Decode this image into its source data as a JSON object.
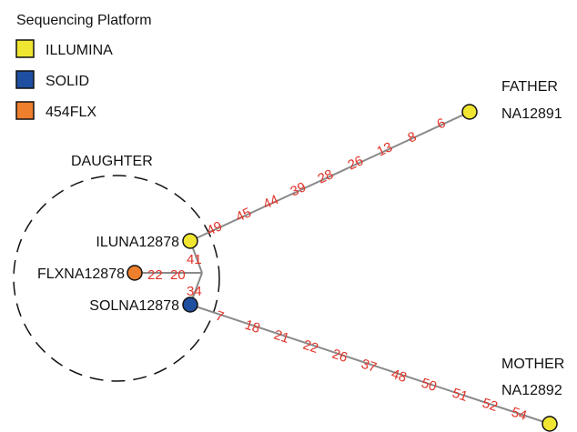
{
  "legend": {
    "title": "Sequencing Platform",
    "items": [
      {
        "label": "ILLUMINA",
        "color": "#f0e632"
      },
      {
        "label": "SOLID",
        "color": "#1f4fa0"
      },
      {
        "label": "454FLX",
        "color": "#ee7f2d"
      }
    ]
  },
  "group": {
    "label": "DAUGHTER"
  },
  "nodes": {
    "father": {
      "name": "FATHER",
      "id": "NA12891",
      "color": "#f0e632"
    },
    "mother": {
      "name": "MOTHER",
      "id": "NA12892",
      "color": "#f0e632"
    },
    "iluna": {
      "label": "ILUNA12878",
      "color": "#f0e632"
    },
    "flxna": {
      "label": "FLXNA12878",
      "color": "#ee7f2d"
    },
    "solna": {
      "label": "SOLNA12878",
      "color": "#1f4fa0"
    }
  },
  "distances": {
    "father_branch": [
      "49",
      "45",
      "44",
      "39",
      "28",
      "26",
      "13",
      "8",
      "6"
    ],
    "mother_branch": [
      "7",
      "18",
      "21",
      "22",
      "26",
      "37",
      "48",
      "50",
      "51",
      "52",
      "54"
    ],
    "center": [
      "41",
      "22",
      "20",
      "34"
    ]
  },
  "colors": {
    "edge": "#8a8a8a",
    "distance_text": "#e0342a",
    "node_stroke": "#111111"
  }
}
